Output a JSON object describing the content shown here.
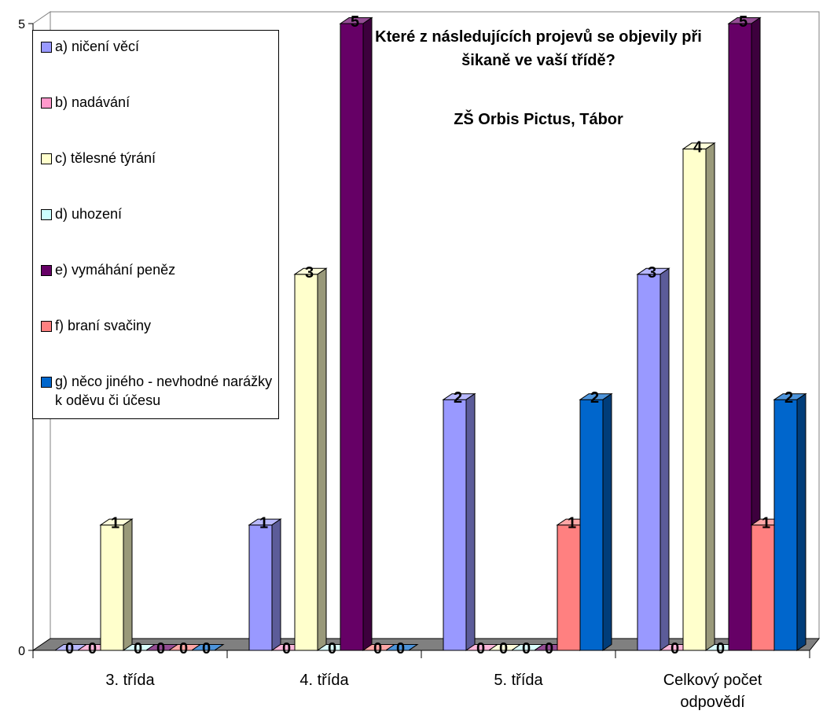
{
  "chart_data": {
    "type": "bar",
    "title": "Které z následujících projevů se objevily při šikaně ve vaší třídě?",
    "subtitle": "ZŠ Orbis Pictus, Tábor",
    "categories": [
      "3. třída",
      "4. třída",
      "5. třída",
      "Celkový počet odpovědí"
    ],
    "series": [
      {
        "name": "a) ničení věcí",
        "color": "#9999FF",
        "values": [
          0,
          1,
          2,
          3
        ]
      },
      {
        "name": "b) nadávání",
        "color": "#FF99CC",
        "values": [
          0,
          0,
          0,
          0
        ]
      },
      {
        "name": "c) tělesné týrání",
        "color": "#FFFFCC",
        "values": [
          1,
          3,
          0,
          4
        ]
      },
      {
        "name": "d) uhození",
        "color": "#CCFFFF",
        "values": [
          0,
          0,
          0,
          0
        ]
      },
      {
        "name": "e) vymáhání peněz",
        "color": "#660066",
        "values": [
          0,
          5,
          0,
          5
        ]
      },
      {
        "name": "f) braní svačiny",
        "color": "#FF8080",
        "values": [
          0,
          0,
          1,
          1
        ]
      },
      {
        "name": "g) něco jiného - nevhodné narážky k oděvu či účesu",
        "color": "#0066CC",
        "values": [
          0,
          0,
          2,
          2
        ]
      }
    ],
    "ylim": [
      0,
      5
    ],
    "yticks": [
      0,
      5
    ],
    "grid": false,
    "legend_position": "left",
    "data_labels": true
  }
}
